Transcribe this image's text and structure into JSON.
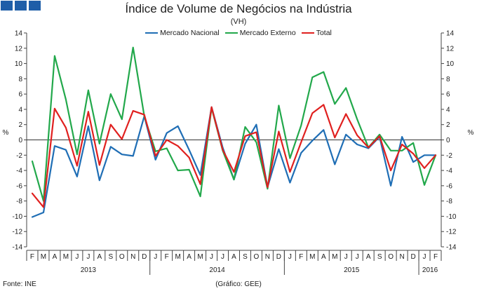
{
  "header": {
    "logo_squares": 3
  },
  "colors": {
    "Mercado Nacional": "#1f6eb5",
    "Mercado Externo": "#22a84b",
    "Total": "#e0201f",
    "logo": "#1f5ea8"
  },
  "footer": {
    "source": "Fonte: INE",
    "credit": "(Gráfico: GEE)"
  },
  "chart_data": {
    "type": "line",
    "title": "Índice de Volume de Negócios na Indústria",
    "subtitle": "(VH)",
    "ylabel_left": "%",
    "ylabel_right": "%",
    "ylim": [
      -14,
      14
    ],
    "yticks": [
      14,
      12,
      10,
      8,
      6,
      4,
      2,
      0,
      -2,
      -4,
      -6,
      -8,
      -10,
      -12,
      -14
    ],
    "legend_position": "top",
    "grid": false,
    "categories": [
      "F",
      "M",
      "A",
      "M",
      "J",
      "J",
      "A",
      "S",
      "O",
      "N",
      "D",
      "J",
      "F",
      "M",
      "A",
      "M",
      "J",
      "J",
      "A",
      "S",
      "O",
      "N",
      "D",
      "J",
      "F",
      "M",
      "A",
      "M",
      "J",
      "J",
      "A",
      "S",
      "O",
      "N",
      "D",
      "J",
      "F"
    ],
    "year_labels": [
      {
        "label": "2013",
        "start": 0,
        "end": 10
      },
      {
        "label": "2014",
        "start": 11,
        "end": 22
      },
      {
        "label": "2015",
        "start": 23,
        "end": 34
      },
      {
        "label": "2016",
        "start": 35,
        "end": 36
      }
    ],
    "series": [
      {
        "name": "Mercado Nacional",
        "values": [
          -10.1,
          -9.5,
          -0.8,
          -1.3,
          -4.8,
          1.8,
          -5.3,
          -0.9,
          -1.9,
          -2.1,
          3.1,
          -2.6,
          0.9,
          1.8,
          -1.3,
          -4.6,
          4.3,
          -1.0,
          -5.2,
          -0.5,
          2.0,
          -6.2,
          -1.2,
          -5.6,
          -1.7,
          -0.1,
          1.3,
          -3.2,
          0.7,
          -0.6,
          -1.1,
          0.4,
          -6.0,
          0.4,
          -2.9,
          -2.0,
          -2.0
        ]
      },
      {
        "name": "Mercado Externo",
        "values": [
          -2.8,
          -8.0,
          11.0,
          5.3,
          -1.9,
          6.5,
          -0.5,
          6.0,
          2.7,
          12.1,
          3.1,
          -1.5,
          -1.1,
          -4.0,
          -3.9,
          -7.4,
          4.2,
          -1.4,
          -5.2,
          1.7,
          -0.3,
          -6.4,
          4.5,
          -2.4,
          1.9,
          8.2,
          8.9,
          4.7,
          6.8,
          2.7,
          -1.0,
          0.7,
          -1.4,
          -1.4,
          -0.4,
          -5.9,
          -2.0
        ]
      },
      {
        "name": "Total",
        "values": [
          -7.0,
          -8.8,
          4.1,
          1.6,
          -3.4,
          3.7,
          -3.3,
          2.0,
          0.1,
          3.8,
          3.3,
          -2.1,
          0.0,
          -0.8,
          -2.3,
          -5.8,
          4.3,
          -1.3,
          -4.2,
          0.5,
          1.0,
          -6.2,
          1.1,
          -4.2,
          -0.3,
          3.5,
          4.6,
          0.3,
          3.4,
          0.6,
          -1.0,
          0.5,
          -4.0,
          -0.6,
          -1.8,
          -3.7,
          -2.0
        ]
      }
    ]
  }
}
